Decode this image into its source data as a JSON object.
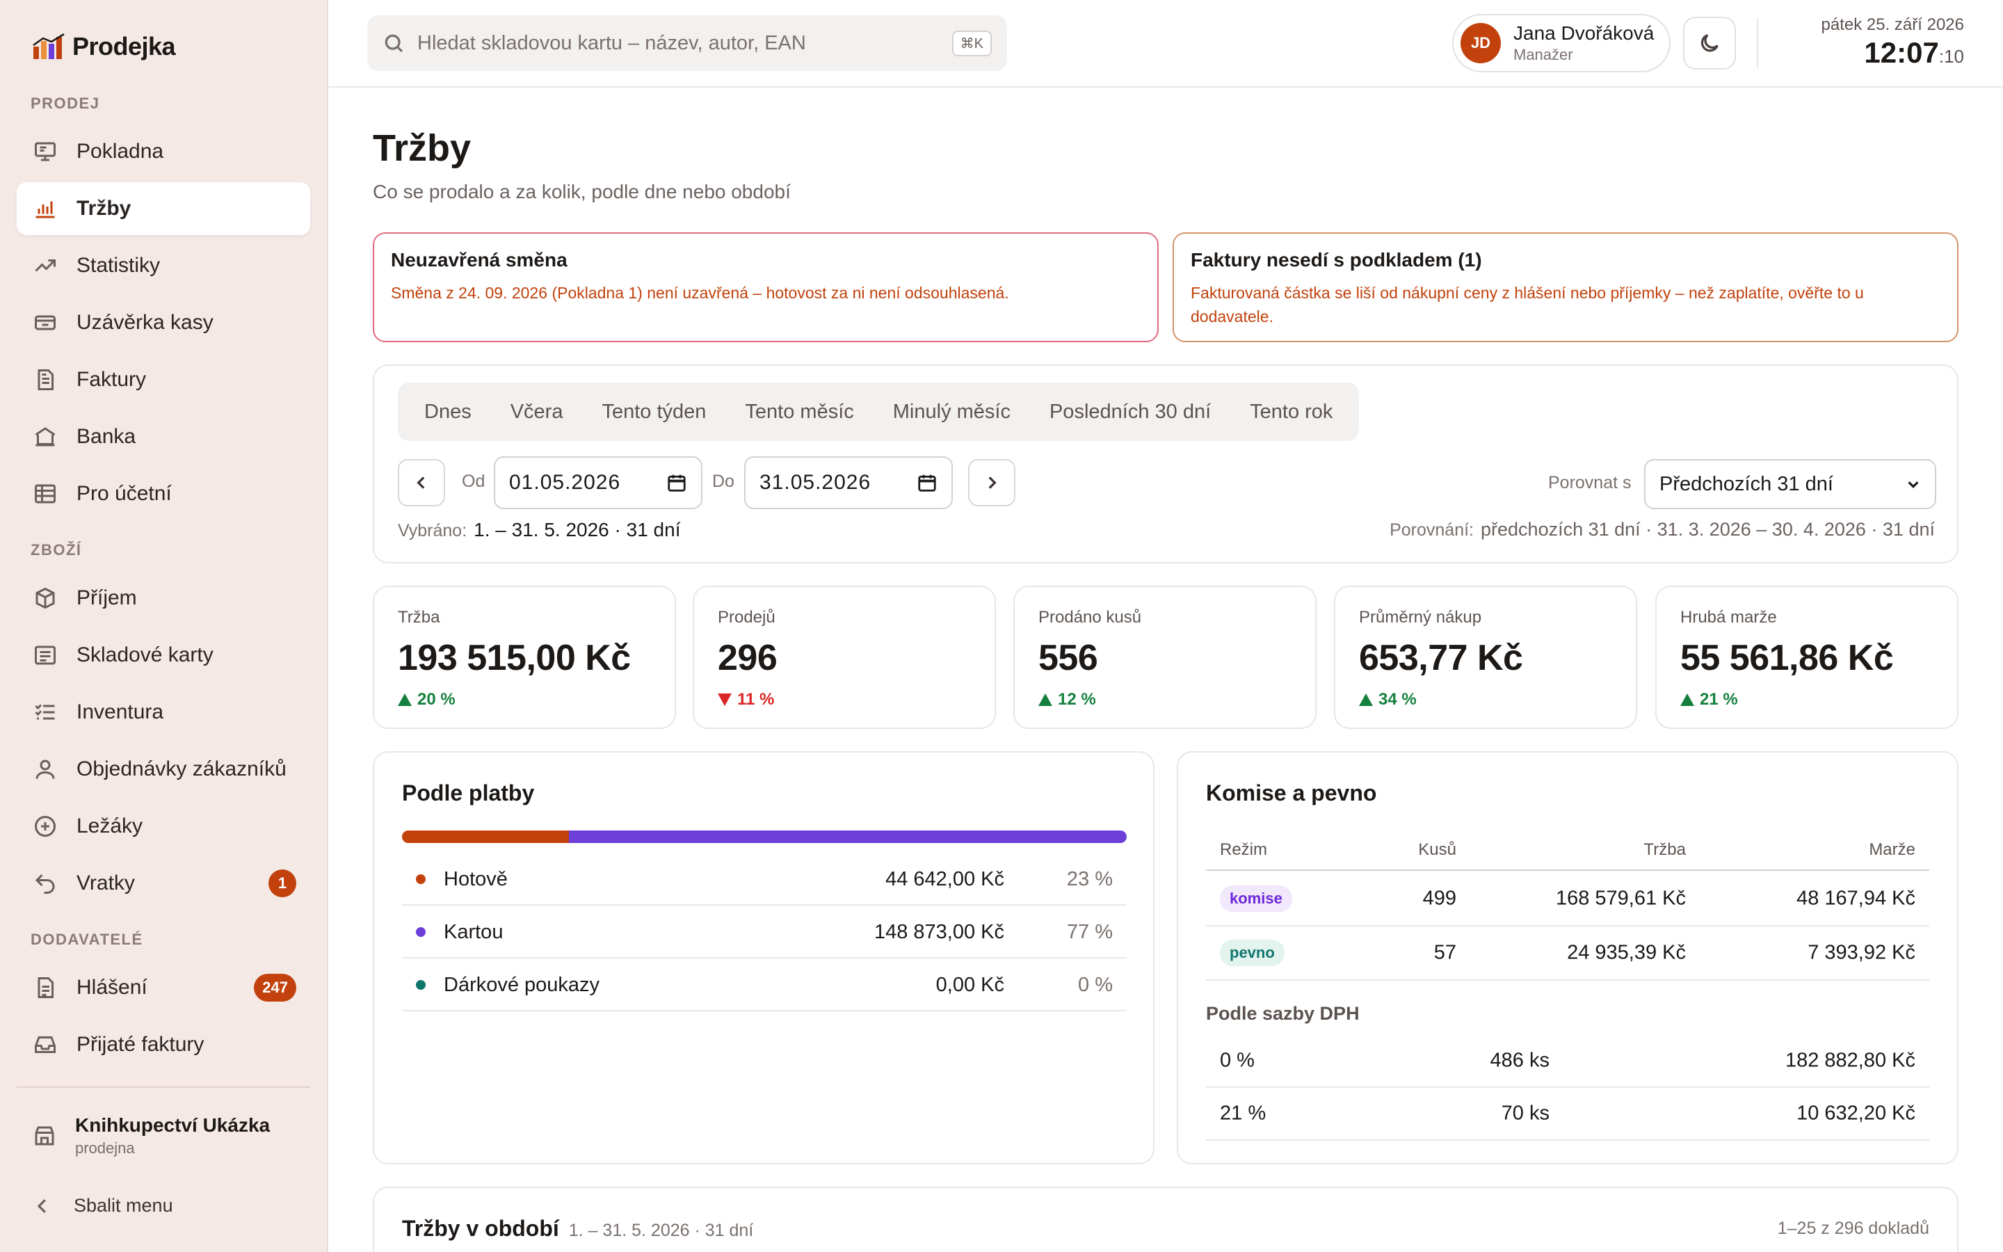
{
  "app": {
    "name": "Prodejka"
  },
  "sidebar": {
    "sections": [
      {
        "label": "PRODEJ"
      },
      {
        "label": "ZBOŽÍ"
      },
      {
        "label": "DODAVATELÉ"
      }
    ],
    "items": [
      {
        "label": "Pokladna",
        "icon": "register-icon"
      },
      {
        "label": "Tržby",
        "icon": "bar-chart-icon",
        "active": true
      },
      {
        "label": "Statistiky",
        "icon": "trend-icon"
      },
      {
        "label": "Uzávěrka kasy",
        "icon": "cash-drawer-icon"
      },
      {
        "label": "Faktury",
        "icon": "document-icon"
      },
      {
        "label": "Banka",
        "icon": "bank-icon"
      },
      {
        "label": "Pro účetní",
        "icon": "table-icon"
      },
      {
        "label": "Příjem",
        "icon": "box-icon"
      },
      {
        "label": "Skladové karty",
        "icon": "list-card-icon"
      },
      {
        "label": "Inventura",
        "icon": "checklist-icon"
      },
      {
        "label": "Objednávky zákazníků",
        "icon": "person-icon"
      },
      {
        "label": "Ležáky",
        "icon": "plus-circle-icon"
      },
      {
        "label": "Vratky",
        "icon": "undo-icon",
        "badge": "1"
      },
      {
        "label": "Hlášení",
        "icon": "report-icon",
        "badge": "247"
      },
      {
        "label": "Přijaté faktury",
        "icon": "inbox-icon"
      }
    ],
    "store": {
      "name": "Knihkupectví Ukázka",
      "type": "prodejna"
    },
    "collapse_label": "Sbalit menu"
  },
  "header": {
    "search_placeholder": "Hledat skladovou kartu – název, autor, EAN",
    "search_shortcut": "⌘K",
    "user": {
      "initials": "JD",
      "name": "Jana Dvořáková",
      "role": "Manažer"
    },
    "date": "pátek 25. září 2026",
    "time": "12:07",
    "seconds": ":10"
  },
  "page": {
    "title": "Tržby",
    "subtitle": "Co se prodalo a za kolik, podle dne nebo období"
  },
  "alerts": [
    {
      "title": "Neuzavřená směna",
      "text": "Směna z 24. 09. 2026 (Pokladna 1) není uzavřená – hotovost za ni není odsouhlasená."
    },
    {
      "title": "Faktury nesedí s podkladem (1)",
      "text": "Fakturovaná částka se liší od nákupní ceny z hlášení nebo příjemky – než zaplatíte, ověřte to u dodavatele."
    }
  ],
  "filters": {
    "quick_ranges": [
      "Dnes",
      "Včera",
      "Tento týden",
      "Tento měsíc",
      "Minulý měsíc",
      "Posledních 30 dní",
      "Tento rok"
    ],
    "from_label": "Od",
    "from_value": "01.05.2026",
    "to_label": "Do",
    "to_value": "31.05.2026",
    "compare_label": "Porovnat s",
    "compare_value": "Předchozích 31 dní",
    "selected_label": "Vybráno:",
    "selected_value": "1. – 31. 5. 2026 · 31 dní",
    "comparison_label": "Porovnání:",
    "comparison_value": "předchozích 31 dní · 31. 3. 2026 – 30. 4. 2026 · 31 dní"
  },
  "kpis": [
    {
      "label": "Tržba",
      "value": "193 515,00 Kč",
      "delta": "20 %",
      "direction": "up"
    },
    {
      "label": "Prodejů",
      "value": "296",
      "delta": "11 %",
      "direction": "down"
    },
    {
      "label": "Prodáno kusů",
      "value": "556",
      "delta": "12 %",
      "direction": "up"
    },
    {
      "label": "Průměrný nákup",
      "value": "653,77 Kč",
      "delta": "34 %",
      "direction": "up"
    },
    {
      "label": "Hrubá marže",
      "value": "55 561,86 Kč",
      "delta": "21 %",
      "direction": "up"
    }
  ],
  "payments": {
    "title": "Podle platby",
    "rows": [
      {
        "name": "Hotově",
        "amount": "44 642,00 Kč",
        "percent": "23 %",
        "share": 23,
        "color": "#c2410c"
      },
      {
        "name": "Kartou",
        "amount": "148 873,00 Kč",
        "percent": "77 %",
        "share": 77,
        "color": "#6d3fd8"
      },
      {
        "name": "Dárkové poukazy",
        "amount": "0,00 Kč",
        "percent": "0 %",
        "share": 0,
        "color": "#0f766e"
      }
    ]
  },
  "commission": {
    "title": "Komise a pevno",
    "columns": {
      "mode": "Režim",
      "qty": "Kusů",
      "revenue": "Tržba",
      "margin": "Marže"
    },
    "rows": [
      {
        "mode": "komise",
        "qty": "499",
        "revenue": "168 579,61 Kč",
        "margin": "48 167,94 Kč"
      },
      {
        "mode": "pevno",
        "qty": "57",
        "revenue": "24 935,39 Kč",
        "margin": "7 393,92 Kč"
      }
    ],
    "vat_title": "Podle sazby DPH",
    "vat_rows": [
      {
        "rate": "0 %",
        "qty": "486 ks",
        "amount": "182 882,80 Kč"
      },
      {
        "rate": "21 %",
        "qty": "70 ks",
        "amount": "10 632,20 Kč"
      }
    ]
  },
  "period": {
    "title": "Tržby v období",
    "subtitle": "1. – 31. 5. 2026 · 31 dní",
    "count": "1–25 z 296 dokladů"
  }
}
